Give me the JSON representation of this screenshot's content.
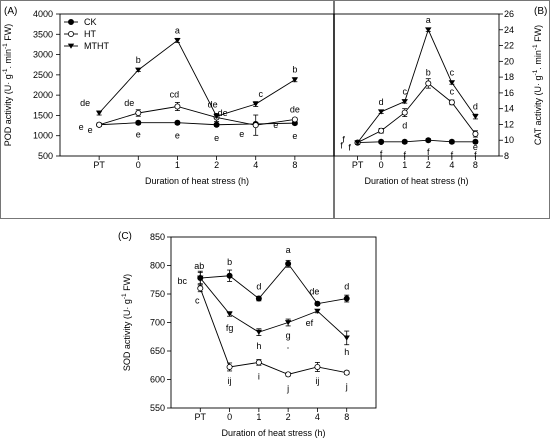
{
  "colors": {
    "ink": "#000000",
    "open_fill": "#ffffff"
  },
  "chart_data": [
    {
      "panel": "(A)",
      "type": "line",
      "xlabel": "Duration of heat stress (h)",
      "ylabel_parts": [
        "POD activity (U· g",
        "-1",
        ". min",
        "-1",
        " FW)"
      ],
      "categories": [
        "PT",
        "0",
        "1",
        "2",
        "4",
        "8"
      ],
      "yticks": [
        500,
        1000,
        1500,
        2000,
        2500,
        3000,
        3500,
        4000
      ],
      "ylim": [
        500,
        4000
      ],
      "legend_position": "top-left",
      "series": [
        {
          "name": "CK",
          "marker": "filled-circle",
          "values": [
            1270,
            1320,
            1320,
            1270,
            1290,
            1310
          ],
          "errors": [
            40,
            40,
            40,
            40,
            40,
            40
          ],
          "labels": [
            "e",
            "e",
            "e",
            "e",
            "e",
            "e"
          ]
        },
        {
          "name": "HT",
          "marker": "open-circle",
          "values": [
            1270,
            1560,
            1720,
            1450,
            1260,
            1400
          ],
          "errors": [
            40,
            80,
            100,
            100,
            250,
            40
          ],
          "labels": [
            "e",
            "de",
            "cd",
            "de",
            "e",
            "de"
          ]
        },
        {
          "name": "MTHT",
          "marker": "filled-triangle-down",
          "values": [
            1560,
            2620,
            3350,
            1480,
            1780,
            2380
          ],
          "errors": [
            50,
            40,
            50,
            40,
            60,
            50
          ],
          "labels": [
            "de",
            "b",
            "a",
            "de",
            "c",
            "b"
          ]
        }
      ]
    },
    {
      "panel": "(B)",
      "type": "line",
      "xlabel": "Duration of heat stress (h)",
      "ylabel_parts": [
        "CAT activity (U· g",
        "-1",
        ". min",
        "-1",
        " FW)"
      ],
      "categories": [
        "PT",
        "0",
        "1",
        "2",
        "4",
        "8"
      ],
      "yticks": [
        8,
        10,
        12,
        14,
        16,
        18,
        20,
        22,
        24,
        26
      ],
      "ylim": [
        8,
        26
      ],
      "series": [
        {
          "name": "CK",
          "marker": "filled-circle",
          "values": [
            9.7,
            9.8,
            9.8,
            10.0,
            9.8,
            9.8
          ],
          "errors": [
            0.2,
            0.2,
            0.2,
            0.2,
            0.2,
            0.2
          ],
          "labels": [
            "f",
            "f",
            "f",
            "f",
            "f",
            "f"
          ]
        },
        {
          "name": "HT",
          "marker": "open-circle",
          "values": [
            9.7,
            11.2,
            13.5,
            17.2,
            14.8,
            10.8
          ],
          "errors": [
            0.2,
            0.3,
            0.5,
            0.6,
            0.3,
            0.4
          ],
          "labels": [
            "f",
            "e",
            "d",
            "b",
            "c",
            "e"
          ]
        },
        {
          "name": "MTHT",
          "marker": "filled-triangle-down",
          "values": [
            9.7,
            13.6,
            14.9,
            24.0,
            17.3,
            13.0
          ],
          "errors": [
            0.2,
            0.2,
            0.2,
            0.2,
            0.2,
            0.3
          ],
          "labels": [
            "f",
            "d",
            "c",
            "a",
            "c",
            "d"
          ]
        }
      ]
    },
    {
      "panel": "(C)",
      "type": "line",
      "xlabel": "Duration of heat stress (h)",
      "ylabel_parts": [
        "SOD activity (U· g",
        "-1",
        " FW)",
        "",
        ""
      ],
      "categories": [
        "PT",
        "0",
        "1",
        "2",
        "4",
        "8"
      ],
      "yticks": [
        550,
        600,
        650,
        700,
        750,
        800,
        850
      ],
      "ylim": [
        550,
        850
      ],
      "series": [
        {
          "name": "CK",
          "marker": "filled-circle",
          "values": [
            778,
            782,
            742,
            803,
            733,
            742
          ],
          "errors": [
            10,
            10,
            4,
            6,
            3,
            6
          ],
          "labels": [
            "ab",
            "b",
            "d",
            "a",
            "de",
            "d"
          ]
        },
        {
          "name": "HT",
          "marker": "open-circle",
          "values": [
            760,
            622,
            630,
            609,
            622,
            612
          ],
          "errors": [
            6,
            7,
            5,
            3,
            8,
            3
          ],
          "labels": [
            "c",
            "ij",
            "i",
            "j",
            "ij",
            "j"
          ]
        },
        {
          "name": "MTHT",
          "marker": "filled-triangle-down",
          "values": [
            778,
            715,
            683,
            700,
            720,
            673
          ],
          "errors": [
            12,
            4,
            6,
            6,
            3,
            12
          ],
          "labels": [
            "bc",
            "fg",
            "h",
            "g",
            "ef",
            "h"
          ]
        }
      ]
    }
  ]
}
